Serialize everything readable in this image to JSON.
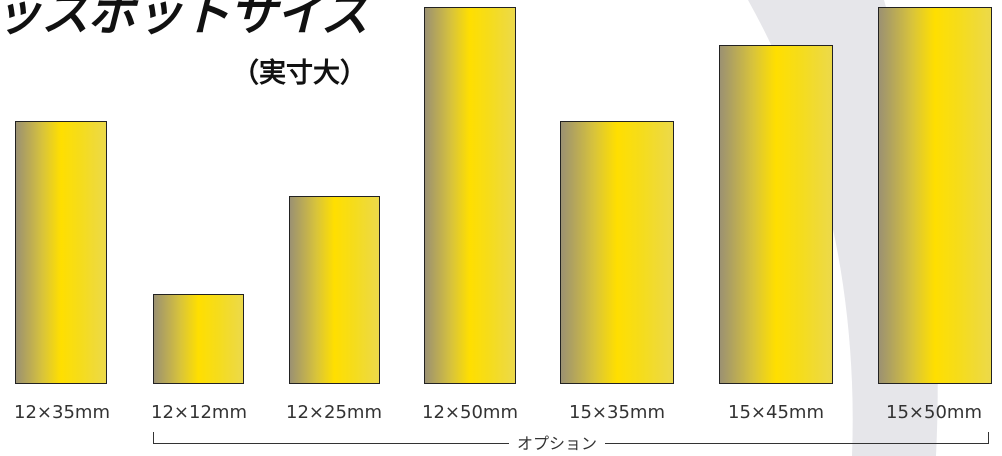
{
  "title": "ッスポットサイズ",
  "subtitle": "（実寸大）",
  "spots": [
    {
      "label": "12×35mm",
      "width_mm": 12,
      "height_mm": 35
    },
    {
      "label": "12×12mm",
      "width_mm": 12,
      "height_mm": 12
    },
    {
      "label": "12×25mm",
      "width_mm": 12,
      "height_mm": 25
    },
    {
      "label": "12×50mm",
      "width_mm": 12,
      "height_mm": 50
    },
    {
      "label": "15×35mm",
      "width_mm": 15,
      "height_mm": 35
    },
    {
      "label": "15×45mm",
      "width_mm": 15,
      "height_mm": 45
    },
    {
      "label": "15×50mm",
      "width_mm": 15,
      "height_mm": 50
    }
  ],
  "option_label": "オプション",
  "colors": {
    "spot_gradient": [
      "#9b9172",
      "#d9c43a",
      "#ffdf00",
      "#f5dc1c",
      "#ecd94a"
    ],
    "spot_border": "#222222",
    "arc": "#e6e6ea",
    "text": "#333333"
  }
}
